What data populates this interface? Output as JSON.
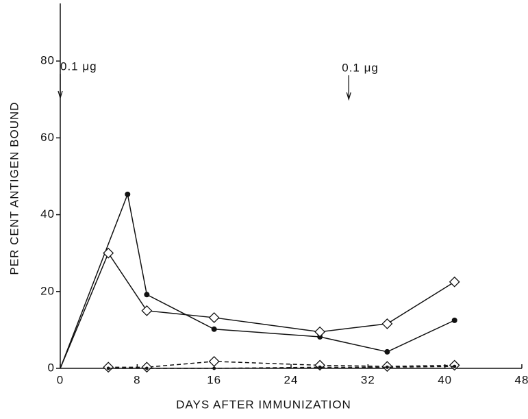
{
  "chart_data": {
    "type": "line",
    "xlabel": "DAYS AFTER IMMUNIZATION",
    "ylabel": "PER CENT ANTIGEN BOUND",
    "xlim": [
      0,
      48
    ],
    "xticks": [
      0,
      8,
      16,
      24,
      32,
      40,
      48
    ],
    "ylim": [
      0,
      95
    ],
    "yticks": [
      0,
      20,
      40,
      60,
      80
    ],
    "annotations": [
      {
        "text": "0.1 μg",
        "x": 0
      },
      {
        "text": "0.1 μg",
        "x": 30
      }
    ],
    "series": [
      {
        "color": "#111111",
        "marker": "circle",
        "dashed": false,
        "x": [
          0,
          7,
          9,
          16,
          27,
          34,
          41
        ],
        "values": [
          0,
          45.3,
          19.2,
          10.2,
          8.2,
          4.3,
          12.5
        ]
      },
      {
        "color": "#111111",
        "marker": "diamond",
        "dashed": false,
        "x": [
          0,
          5,
          9,
          16,
          27,
          34,
          41
        ],
        "values": [
          0,
          30,
          15,
          13.2,
          9.5,
          11.6,
          22.5
        ]
      },
      {
        "color": "#111111",
        "marker": "diamond",
        "dashed": true,
        "x": [
          5,
          9,
          16,
          27,
          34,
          41
        ],
        "values": [
          0.3,
          0.3,
          1.8,
          0.8,
          0.5,
          0.8
        ]
      },
      {
        "color": "#111111",
        "marker": "circle",
        "dashed": true,
        "x": [
          5,
          9,
          16,
          27,
          34,
          41
        ],
        "values": [
          0,
          0,
          0,
          0.3,
          0.3,
          0.5
        ]
      }
    ]
  }
}
